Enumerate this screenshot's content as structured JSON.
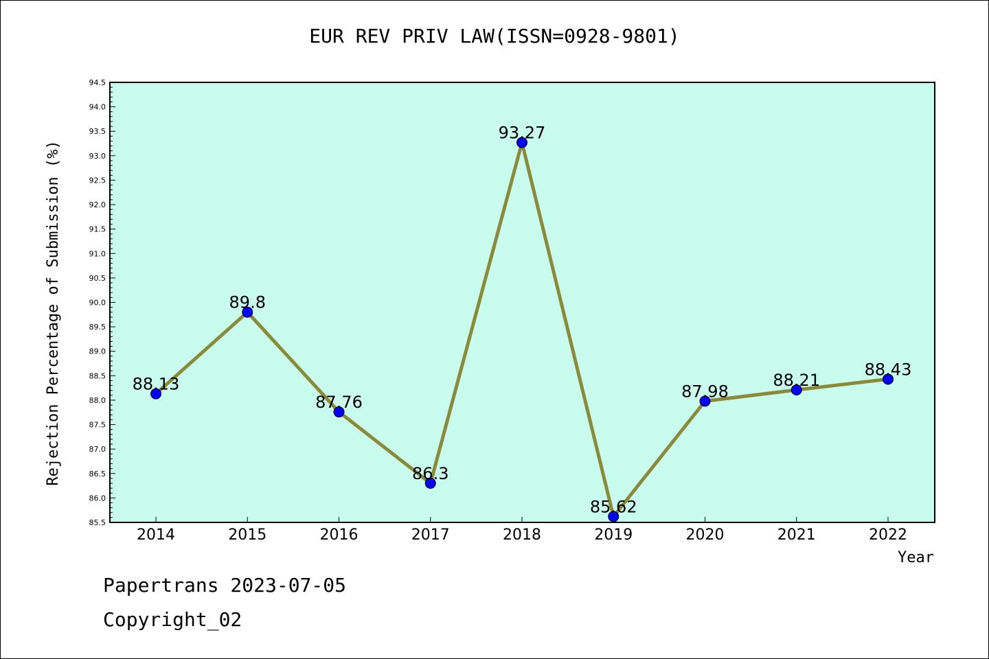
{
  "chart_data": {
    "type": "line",
    "title": "EUR REV PRIV LAW(ISSN=0928-9801)",
    "xlabel": "Year",
    "ylabel": "Rejection Percentage of Submission (%)",
    "categories": [
      "2014",
      "2015",
      "2016",
      "2017",
      "2018",
      "2019",
      "2020",
      "2021",
      "2022"
    ],
    "series": [
      {
        "values": [
          88.13,
          89.8,
          87.76,
          86.3,
          93.27,
          85.62,
          87.98,
          88.21,
          88.43
        ],
        "labels": [
          "88.13",
          "89.8",
          "87.76",
          "86.3",
          "93.27",
          "85.62",
          "87.98",
          "88.21",
          "88.43"
        ],
        "line_color": "#8b8a3a",
        "marker_color": "#0000ff"
      }
    ],
    "ylim": [
      85.5,
      94.5
    ],
    "yticks": [
      "85.5",
      "86.0",
      "86.5",
      "87.0",
      "87.5",
      "88.0",
      "88.5",
      "89.0",
      "89.5",
      "90.0",
      "90.5",
      "91.0",
      "91.5",
      "92.0",
      "92.5",
      "93.0",
      "93.5",
      "94.0",
      "94.5"
    ],
    "plot_background": "#c8fced",
    "grid": false
  },
  "footer": {
    "line1": "Papertrans 2023-07-05",
    "line2": "Copyright_02"
  }
}
